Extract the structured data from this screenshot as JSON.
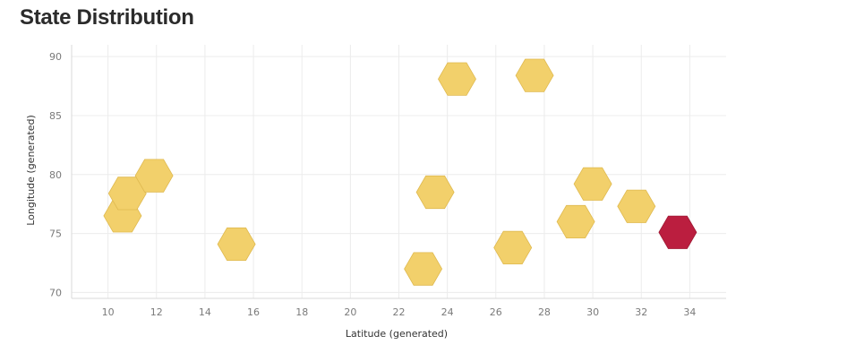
{
  "page": {
    "title": "State Distribution"
  },
  "colors": {
    "default": "#f2d06b",
    "highlight": "#bb1e3f"
  },
  "chart_data": {
    "type": "scatter",
    "marker": "hexagon",
    "title": "State Distribution",
    "xlabel": "Latitude (generated)",
    "ylabel": "Longitude (generated)",
    "xlim": [
      8.5,
      35.5
    ],
    "ylim": [
      69.5,
      91
    ],
    "xticks": [
      10,
      12,
      14,
      16,
      18,
      20,
      22,
      24,
      26,
      28,
      30,
      32,
      34
    ],
    "yticks": [
      70,
      75,
      80,
      85,
      90
    ],
    "grid": true,
    "points": [
      {
        "x": 10.6,
        "y": 76.5,
        "highlight": false
      },
      {
        "x": 10.8,
        "y": 78.4,
        "highlight": false
      },
      {
        "x": 11.9,
        "y": 79.9,
        "highlight": false
      },
      {
        "x": 15.3,
        "y": 74.1,
        "highlight": false
      },
      {
        "x": 23.0,
        "y": 72.0,
        "highlight": false
      },
      {
        "x": 23.5,
        "y": 78.5,
        "highlight": false
      },
      {
        "x": 24.4,
        "y": 88.1,
        "highlight": false
      },
      {
        "x": 26.7,
        "y": 73.8,
        "highlight": false
      },
      {
        "x": 27.6,
        "y": 88.4,
        "highlight": false
      },
      {
        "x": 29.3,
        "y": 76.0,
        "highlight": false
      },
      {
        "x": 30.0,
        "y": 79.2,
        "highlight": false
      },
      {
        "x": 31.8,
        "y": 77.3,
        "highlight": false
      },
      {
        "x": 33.5,
        "y": 75.1,
        "highlight": true
      }
    ]
  }
}
